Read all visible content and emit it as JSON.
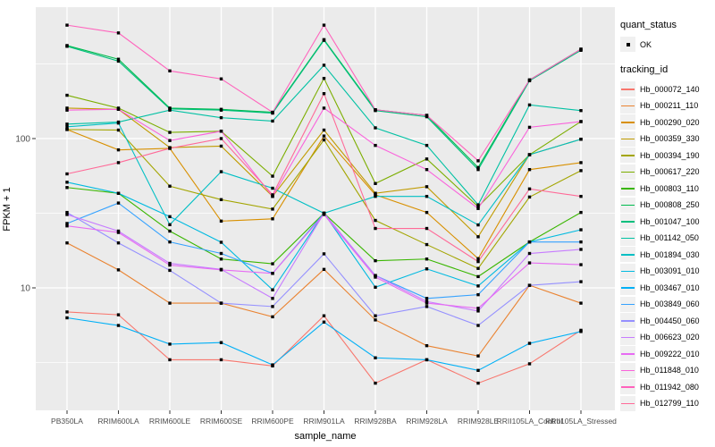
{
  "figure": {
    "y_axis_title": "FPKM + 1",
    "x_axis_title": "sample_name",
    "y_tick_labels": [
      "100",
      "10"
    ],
    "panel_bg": "#ebebeb",
    "grid_color": "#ffffff",
    "tick_label_color": "#4d4d4d",
    "marker_color": "#000000"
  },
  "legend": {
    "quant_title": "quant_status",
    "quant_items": [
      {
        "label": "OK"
      }
    ],
    "tracking_title": "tracking_id"
  },
  "chart_data": {
    "type": "line",
    "yscale": "log10",
    "title": "",
    "xlabel": "sample_name",
    "ylabel": "FPKM + 1",
    "grid": true,
    "legend_position": "right",
    "y_major_ticks": [
      10,
      100
    ],
    "y_minor_gridlines": [
      3.162,
      31.62,
      316.2
    ],
    "ylim": [
      1.8,
      700
    ],
    "marker": "square",
    "categories": [
      "PB350LA",
      "RRIM600LA",
      "RRIM600LE",
      "RRIM600SE",
      "RRIM600PE",
      "RRIM901LA",
      "RRIM928BA",
      "RRIM928LA",
      "RRIM928LE",
      "RRII105LA_Control",
      "RRII105LA_Stressed"
    ],
    "series": [
      {
        "name": "Hb_000072_140",
        "color": "#F8766D",
        "values": [
          6.9,
          6.6,
          3.3,
          3.3,
          3.0,
          6.5,
          2.3,
          3.3,
          2.3,
          3.1,
          5.2
        ]
      },
      {
        "name": "Hb_000211_110",
        "color": "#EA8331",
        "values": [
          20.0,
          13.2,
          7.9,
          7.9,
          6.4,
          13.3,
          6.1,
          4.1,
          3.5,
          10.4,
          7.9
        ]
      },
      {
        "name": "Hb_000290_020",
        "color": "#D89000",
        "values": [
          115,
          84,
          86,
          28,
          29,
          104,
          42,
          32,
          15.7,
          62,
          69
        ]
      },
      {
        "name": "Hb_000359_330",
        "color": "#C09B00",
        "values": [
          160,
          157,
          87,
          89,
          41,
          114,
          43,
          47.6,
          22,
          78,
          99
        ]
      },
      {
        "name": "Hb_000394_190",
        "color": "#A3A500",
        "values": [
          115,
          114,
          48,
          39,
          33.7,
          98,
          28.3,
          19.5,
          13.5,
          40.6,
          61
        ]
      },
      {
        "name": "Hb_000617_220",
        "color": "#7CAE00",
        "values": [
          195,
          160,
          110,
          112,
          56,
          253,
          50,
          73,
          35,
          78,
          130
        ]
      },
      {
        "name": "Hb_000803_110",
        "color": "#39B600",
        "values": [
          47,
          43,
          24,
          15.6,
          14.5,
          31.6,
          15.2,
          15.6,
          11.9,
          20.3,
          32
        ]
      },
      {
        "name": "Hb_000808_250",
        "color": "#00BB4E",
        "values": [
          420,
          340,
          160,
          157,
          150,
          460,
          156,
          143,
          64,
          247,
          397
        ]
      },
      {
        "name": "Hb_001047_100",
        "color": "#00BF7D",
        "values": [
          415,
          330,
          158,
          155,
          148,
          455,
          154,
          140,
          62,
          244,
          390
        ]
      },
      {
        "name": "Hb_001142_050",
        "color": "#00C1A3",
        "values": [
          125,
          129,
          155,
          138,
          131,
          310,
          118,
          90,
          36,
          168,
          154
        ]
      },
      {
        "name": "Hb_001894_030",
        "color": "#00BFC4",
        "values": [
          120,
          127,
          26.5,
          60,
          46.5,
          31.6,
          41,
          41,
          26.4,
          78,
          99
        ]
      },
      {
        "name": "Hb_003091_010",
        "color": "#00BAE0",
        "values": [
          51,
          43,
          30,
          20.2,
          9.7,
          31.6,
          10.1,
          13.4,
          10.3,
          20.3,
          24.5
        ]
      },
      {
        "name": "Hb_003467_010",
        "color": "#00B0F6",
        "values": [
          6.3,
          5.6,
          4.2,
          4.3,
          3.05,
          5.9,
          3.4,
          3.3,
          2.8,
          4.25,
          5.1
        ]
      },
      {
        "name": "Hb_003849_060",
        "color": "#35A2FF",
        "values": [
          27,
          37,
          20.3,
          17,
          12.5,
          31.6,
          12.1,
          8.5,
          9.0,
          20.3,
          20.3
        ]
      },
      {
        "name": "Hb_004450_060",
        "color": "#9590FF",
        "values": [
          32,
          20,
          13.1,
          7.9,
          7.5,
          16.9,
          6.5,
          7.5,
          5.6,
          10.4,
          11.0
        ]
      },
      {
        "name": "Hb_006623_020",
        "color": "#C77CFF",
        "values": [
          31,
          24,
          14.6,
          13.3,
          8.5,
          31.6,
          12.1,
          8.1,
          7.0,
          17.0,
          18.1
        ]
      },
      {
        "name": "Hb_009222_010",
        "color": "#E76BF3",
        "values": [
          26,
          23.5,
          14.2,
          13.2,
          12.5,
          31.0,
          11.8,
          7.9,
          7.3,
          14.7,
          14.3
        ]
      },
      {
        "name": "Hb_011848_010",
        "color": "#FA62DB",
        "values": [
          155,
          157,
          97,
          112,
          41,
          160,
          90,
          62,
          34,
          119,
          130
        ]
      },
      {
        "name": "Hb_011942_080",
        "color": "#FF62BC",
        "values": [
          575,
          510,
          284,
          251,
          150,
          575,
          156,
          143,
          71,
          247,
          397
        ]
      },
      {
        "name": "Hb_012799_110",
        "color": "#FF6A98",
        "values": [
          58,
          69,
          86,
          100,
          42,
          200,
          25,
          25,
          15,
          46,
          41
        ]
      }
    ]
  }
}
